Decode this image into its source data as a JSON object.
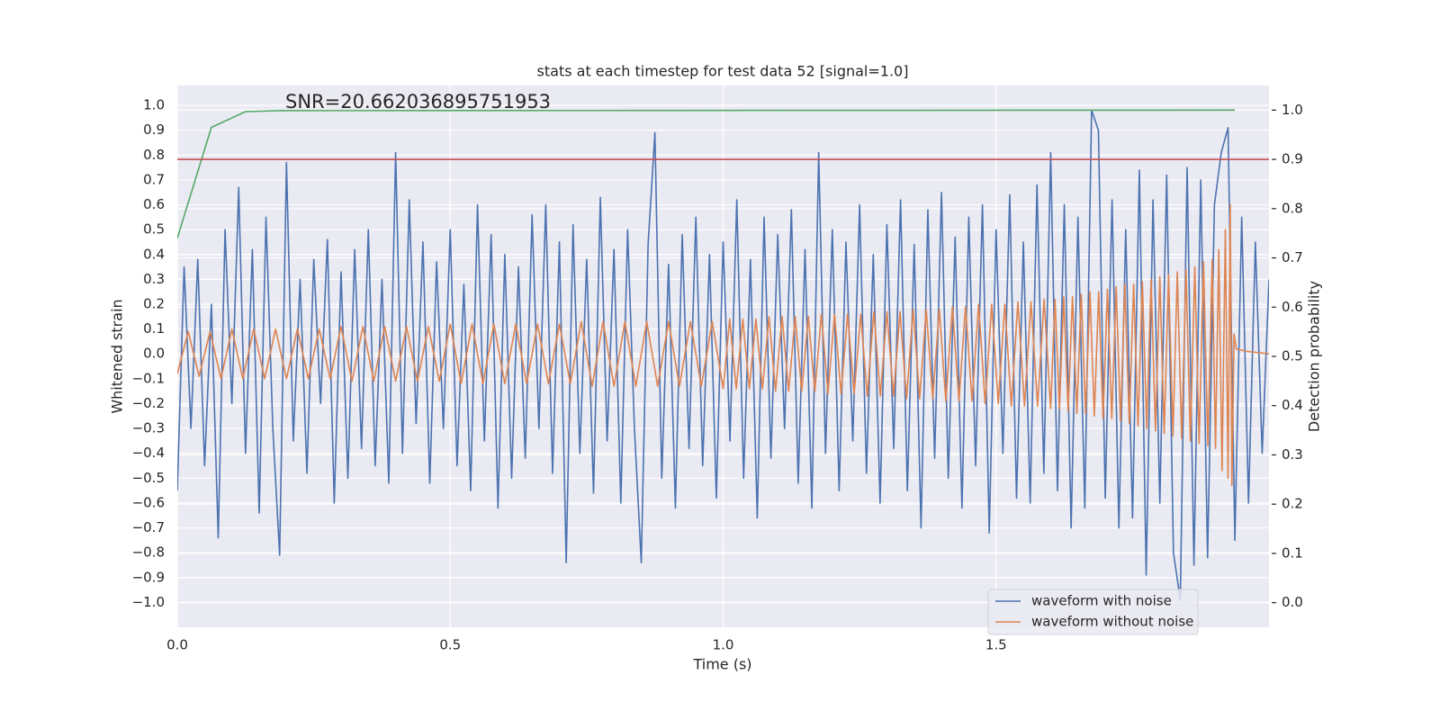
{
  "chart_data": {
    "type": "line",
    "title": "stats at each timestep for test data 52 [signal=1.0]",
    "xlabel": "Time (s)",
    "ylabel": "Whitened strain",
    "y2label": "Detection probability",
    "annotations": [
      "SNR=20.662036895751953"
    ],
    "xlim": [
      0,
      2.0
    ],
    "ylim": [
      -1.1,
      1.08
    ],
    "y2lim": [
      -0.05,
      1.05
    ],
    "xticks": [
      {
        "value": 0,
        "label": "0.0"
      },
      0.5,
      {
        "value": 1,
        "label": "1.0"
      },
      1.5
    ],
    "yticks": [
      {
        "value": -1,
        "label": "−1.0"
      },
      {
        "value": -0.9,
        "label": "−0.9"
      },
      {
        "value": -0.8,
        "label": "−0.8"
      },
      {
        "value": -0.7,
        "label": "−0.7"
      },
      {
        "value": -0.6,
        "label": "−0.6"
      },
      {
        "value": -0.5,
        "label": "−0.5"
      },
      {
        "value": -0.4,
        "label": "−0.4"
      },
      {
        "value": -0.3,
        "label": "−0.3"
      },
      {
        "value": -0.2,
        "label": "−0.2"
      },
      {
        "value": -0.1,
        "label": "−0.1"
      },
      {
        "value": 0,
        "label": "0.0"
      },
      0.1,
      0.2,
      0.3,
      0.4,
      0.5,
      0.6,
      0.7,
      0.8,
      0.9,
      {
        "value": 1,
        "label": "1.0"
      }
    ],
    "y2ticks": [
      {
        "value": 0,
        "label": "0.0"
      },
      0.1,
      0.2,
      0.3,
      0.4,
      0.5,
      0.6,
      0.7,
      0.8,
      0.9,
      {
        "value": 1,
        "label": "1.0"
      }
    ],
    "grid": true,
    "legend": "lower right",
    "series": [
      {
        "name": "waveform with noise",
        "color": "#4c72b0",
        "x": [
          0,
          0.0125,
          0.025,
          0.0375,
          0.05,
          0.0625,
          0.075,
          0.0875,
          0.1,
          0.1125,
          0.125,
          0.1375,
          0.15,
          0.1625,
          0.175,
          0.1875,
          0.2,
          0.2125,
          0.225,
          0.2375,
          0.25,
          0.2625,
          0.275,
          0.2875,
          0.3,
          0.3125,
          0.325,
          0.3375,
          0.35,
          0.3625,
          0.375,
          0.3875,
          0.4,
          0.4125,
          0.425,
          0.4375,
          0.45,
          0.4625,
          0.475,
          0.4875,
          0.5,
          0.5125,
          0.525,
          0.5375,
          0.55,
          0.5625,
          0.575,
          0.5875,
          0.6,
          0.6125,
          0.625,
          0.6375,
          0.65,
          0.6625,
          0.675,
          0.6875,
          0.7,
          0.7125,
          0.725,
          0.7375,
          0.75,
          0.7625,
          0.775,
          0.7875,
          0.8,
          0.8125,
          0.825,
          0.8375,
          0.85,
          0.8625,
          0.875,
          0.8875,
          0.9,
          0.9125,
          0.925,
          0.9375,
          0.95,
          0.9625,
          0.975,
          0.9875,
          1.0,
          1.0125,
          1.025,
          1.0375,
          1.05,
          1.0625,
          1.075,
          1.0875,
          1.1,
          1.1125,
          1.125,
          1.1375,
          1.15,
          1.1625,
          1.175,
          1.1875,
          1.2,
          1.2125,
          1.225,
          1.2375,
          1.25,
          1.2625,
          1.275,
          1.2875,
          1.3,
          1.3125,
          1.325,
          1.3375,
          1.35,
          1.3625,
          1.375,
          1.3875,
          1.4,
          1.4125,
          1.425,
          1.4375,
          1.45,
          1.4625,
          1.475,
          1.4875,
          1.5,
          1.5125,
          1.525,
          1.5375,
          1.55,
          1.5625,
          1.575,
          1.5875,
          1.6,
          1.6125,
          1.625,
          1.6375,
          1.65,
          1.6625,
          1.675,
          1.6875,
          1.7,
          1.7125,
          1.725,
          1.7375,
          1.75,
          1.7625,
          1.775,
          1.7875,
          1.8,
          1.8125,
          1.825,
          1.8375,
          1.85,
          1.8625,
          1.875,
          1.8875,
          1.9,
          1.9125,
          1.925,
          1.9375,
          1.95,
          1.9625,
          1.975,
          1.9875,
          2.0
        ],
        "values": [
          -0.55,
          0.35,
          -0.3,
          0.38,
          -0.45,
          0.2,
          -0.74,
          0.5,
          -0.2,
          0.67,
          -0.4,
          0.42,
          -0.64,
          0.55,
          -0.3,
          -0.81,
          0.77,
          -0.35,
          0.3,
          -0.48,
          0.38,
          -0.2,
          0.46,
          -0.6,
          0.33,
          -0.5,
          0.42,
          -0.38,
          0.5,
          -0.45,
          0.3,
          -0.52,
          0.81,
          -0.4,
          0.62,
          -0.28,
          0.45,
          -0.52,
          0.37,
          -0.3,
          0.5,
          -0.45,
          0.28,
          -0.55,
          0.6,
          -0.35,
          0.48,
          -0.62,
          0.4,
          -0.5,
          0.35,
          -0.42,
          0.56,
          -0.3,
          0.6,
          -0.48,
          0.45,
          -0.84,
          0.52,
          -0.4,
          0.38,
          -0.56,
          0.63,
          -0.35,
          0.42,
          -0.6,
          0.5,
          -0.3,
          -0.84,
          0.44,
          0.89,
          -0.5,
          0.36,
          -0.62,
          0.48,
          -0.38,
          0.55,
          -0.45,
          0.4,
          -0.58,
          0.45,
          -0.35,
          0.62,
          -0.5,
          0.38,
          -0.66,
          0.55,
          -0.42,
          0.48,
          -0.3,
          0.58,
          -0.52,
          0.42,
          -0.62,
          0.81,
          -0.4,
          0.5,
          -0.55,
          0.45,
          -0.35,
          0.6,
          -0.48,
          0.4,
          -0.6,
          0.52,
          -0.38,
          0.62,
          -0.55,
          0.44,
          -0.7,
          0.58,
          -0.42,
          0.65,
          -0.5,
          0.47,
          -0.62,
          0.55,
          -0.45,
          0.6,
          -0.72,
          0.5,
          -0.4,
          0.64,
          -0.58,
          0.45,
          -0.6,
          0.68,
          -0.48,
          0.81,
          -0.55,
          0.6,
          -0.7,
          0.55,
          -0.62,
          0.98,
          0.9,
          -0.58,
          0.62,
          -0.7,
          0.5,
          -0.66,
          0.74,
          -0.89,
          0.62,
          -0.6,
          0.72,
          -0.8,
          -0.99,
          0.75,
          -0.85,
          0.7,
          -0.82,
          0.6,
          0.81,
          0.91,
          -0.75,
          0.55,
          -0.6,
          0.45,
          -0.4,
          0.3
        ]
      },
      {
        "name": "waveform without noise",
        "color": "#dd8452",
        "x": [
          0,
          0.02,
          0.04,
          0.06,
          0.08,
          0.1,
          0.12,
          0.14,
          0.16,
          0.18,
          0.2,
          0.22,
          0.24,
          0.26,
          0.28,
          0.3,
          0.32,
          0.34,
          0.36,
          0.38,
          0.4,
          0.42,
          0.44,
          0.46,
          0.48,
          0.5,
          0.52,
          0.54,
          0.56,
          0.58,
          0.6,
          0.62,
          0.64,
          0.66,
          0.68,
          0.7,
          0.72,
          0.74,
          0.76,
          0.78,
          0.8,
          0.82,
          0.84,
          0.86,
          0.88,
          0.9,
          0.92,
          0.94,
          0.96,
          0.98,
          1.0,
          1.012,
          1.024,
          1.036,
          1.048,
          1.06,
          1.072,
          1.084,
          1.096,
          1.108,
          1.12,
          1.132,
          1.144,
          1.156,
          1.168,
          1.18,
          1.192,
          1.204,
          1.216,
          1.228,
          1.24,
          1.252,
          1.264,
          1.276,
          1.288,
          1.3,
          1.312,
          1.324,
          1.336,
          1.348,
          1.36,
          1.372,
          1.384,
          1.396,
          1.408,
          1.42,
          1.432,
          1.444,
          1.456,
          1.468,
          1.48,
          1.492,
          1.504,
          1.516,
          1.528,
          1.54,
          1.552,
          1.564,
          1.576,
          1.588,
          1.6,
          1.608,
          1.616,
          1.624,
          1.632,
          1.64,
          1.648,
          1.656,
          1.664,
          1.672,
          1.68,
          1.688,
          1.696,
          1.704,
          1.712,
          1.72,
          1.728,
          1.736,
          1.744,
          1.752,
          1.76,
          1.768,
          1.776,
          1.784,
          1.792,
          1.8,
          1.808,
          1.816,
          1.824,
          1.832,
          1.84,
          1.848,
          1.856,
          1.864,
          1.872,
          1.88,
          1.888,
          1.896,
          1.902,
          1.908,
          1.914,
          1.92,
          1.925,
          1.929,
          1.932,
          1.936,
          1.94,
          1.96,
          2.0
        ],
        "values": [
          -0.08,
          0.09,
          -0.09,
          0.09,
          -0.1,
          0.1,
          -0.1,
          0.1,
          -0.1,
          0.1,
          -0.1,
          0.1,
          -0.1,
          0.1,
          -0.1,
          0.11,
          -0.11,
          0.11,
          -0.11,
          0.11,
          -0.11,
          0.11,
          -0.11,
          0.11,
          -0.11,
          0.12,
          -0.12,
          0.12,
          -0.12,
          0.12,
          -0.12,
          0.12,
          -0.12,
          0.12,
          -0.12,
          0.12,
          -0.12,
          0.13,
          -0.13,
          0.13,
          -0.13,
          0.13,
          -0.13,
          0.13,
          -0.13,
          0.13,
          -0.13,
          0.13,
          -0.13,
          0.13,
          -0.14,
          0.14,
          -0.14,
          0.14,
          -0.14,
          0.14,
          -0.14,
          0.15,
          -0.15,
          0.15,
          -0.15,
          0.15,
          -0.15,
          0.15,
          -0.15,
          0.16,
          -0.16,
          0.16,
          -0.16,
          0.16,
          -0.16,
          0.16,
          -0.17,
          0.17,
          -0.17,
          0.17,
          -0.17,
          0.17,
          -0.18,
          0.18,
          -0.18,
          0.18,
          -0.18,
          0.18,
          -0.19,
          0.19,
          -0.19,
          0.19,
          -0.19,
          0.2,
          -0.2,
          0.2,
          -0.2,
          0.2,
          -0.21,
          0.21,
          -0.21,
          0.21,
          -0.21,
          0.22,
          -0.22,
          0.22,
          -0.22,
          0.23,
          -0.23,
          0.23,
          -0.24,
          0.24,
          -0.24,
          0.25,
          -0.25,
          0.25,
          -0.26,
          0.26,
          -0.26,
          0.27,
          -0.27,
          0.28,
          -0.28,
          0.28,
          -0.29,
          0.29,
          -0.3,
          0.3,
          -0.31,
          0.31,
          -0.32,
          0.32,
          -0.33,
          0.33,
          -0.34,
          0.34,
          -0.35,
          0.35,
          -0.36,
          0.37,
          -0.37,
          0.38,
          -0.38,
          0.42,
          -0.47,
          0.5,
          -0.5,
          0.6,
          -0.53,
          0.08,
          0.02,
          0.01,
          0.0
        ]
      },
      {
        "color": "#55a868",
        "axis": "y2",
        "x": [
          0,
          0.0625,
          0.125,
          0.1875,
          1.9375
        ],
        "values": [
          0.74,
          0.965,
          0.997,
          0.999,
          1.0
        ]
      },
      {
        "color": "#c44e52",
        "axis": "y2",
        "x": [
          0,
          2.0
        ],
        "values": [
          0.9,
          0.9
        ]
      }
    ]
  }
}
